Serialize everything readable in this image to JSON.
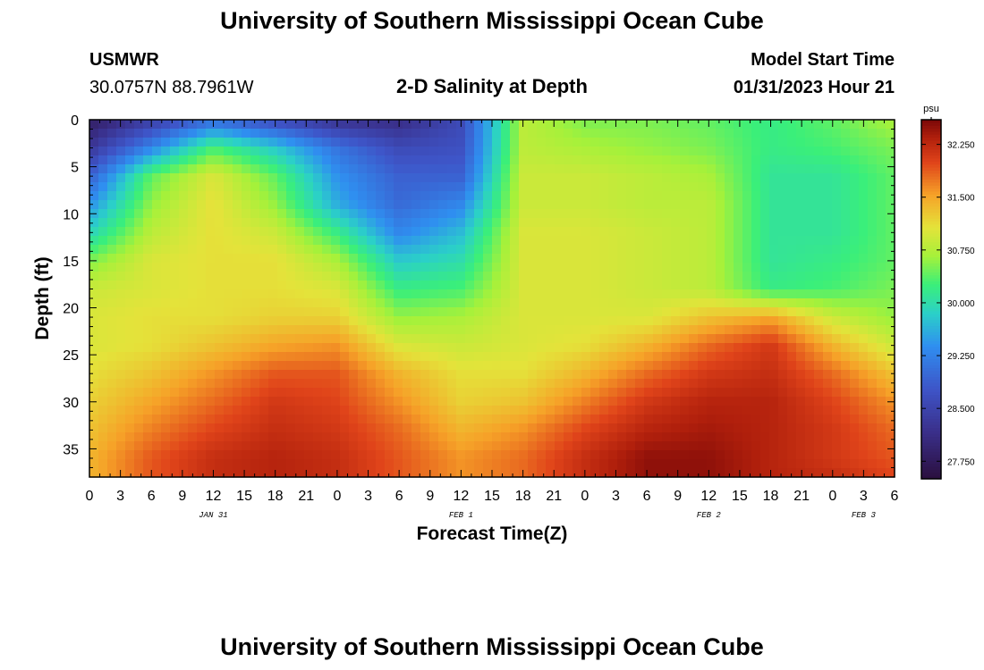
{
  "header": {
    "title": "University of Southern Mississippi Ocean Cube",
    "station_id": "USMWR",
    "coords": "30.0757N  88.7961W",
    "plot_title": "2-D Salinity at Depth",
    "start_label": "Model Start Time",
    "start_value": "01/31/2023 Hour 21"
  },
  "footer": {
    "title": "University of Southern Mississippi Ocean Cube"
  },
  "chart_data": {
    "type": "heatmap",
    "title": "2-D Salinity at Depth",
    "xlabel": "Forecast Time(Z)",
    "ylabel": "Depth (ft)",
    "x_tick_labels": [
      "0",
      "3",
      "6",
      "9",
      "12",
      "15",
      "18",
      "21",
      "0",
      "3",
      "6",
      "9",
      "12",
      "15",
      "18",
      "21",
      "0",
      "3",
      "6",
      "9",
      "12",
      "15",
      "18",
      "21",
      "0",
      "3",
      "6"
    ],
    "x_hours_offset": [
      0,
      3,
      6,
      9,
      12,
      15,
      18,
      21,
      24,
      27,
      30,
      33,
      36,
      39,
      42,
      45,
      48,
      51,
      54,
      57,
      60,
      63,
      66,
      69,
      72,
      75,
      78
    ],
    "x_range_hours": [
      0,
      78
    ],
    "date_labels": [
      {
        "text": "JAN 31",
        "hour": 12
      },
      {
        "text": "FEB 1",
        "hour": 36
      },
      {
        "text": "FEB 2",
        "hour": 60
      },
      {
        "text": "FEB 3",
        "hour": 75
      }
    ],
    "y_ticks": [
      0,
      5,
      10,
      15,
      20,
      25,
      30,
      35
    ],
    "y_tick_labels": [
      "0",
      "5",
      "10",
      "15",
      "20",
      "25",
      "30",
      "35"
    ],
    "ylim": [
      0,
      38
    ],
    "y_inverted": true,
    "colorbar": {
      "unit": "psu",
      "range": [
        27.5,
        32.6
      ],
      "ticks": [
        27.75,
        28.5,
        29.25,
        30.0,
        30.75,
        31.5,
        32.25
      ],
      "tick_labels": [
        "27.750",
        "28.500",
        "29.250",
        "30.000",
        "30.750",
        "31.500",
        "32.250"
      ]
    },
    "salinity_grid_psu": {
      "hours": [
        0,
        6,
        12,
        18,
        24,
        30,
        36,
        42,
        48,
        54,
        60,
        66,
        72,
        78
      ],
      "depths_ft": [
        0,
        3,
        6,
        9,
        12,
        15,
        18,
        21,
        24,
        27,
        30,
        33,
        36,
        38
      ],
      "rows": [
        [
          27.8,
          28.4,
          29.0,
          28.6,
          28.2,
          28.1,
          28.6,
          30.8,
          30.5,
          30.5,
          30.4,
          30.2,
          30.4,
          30.7
        ],
        [
          28.3,
          29.3,
          30.3,
          29.8,
          29.1,
          28.6,
          28.7,
          30.8,
          30.7,
          30.6,
          30.5,
          30.2,
          30.3,
          30.5
        ],
        [
          28.9,
          30.4,
          31.0,
          30.4,
          29.4,
          28.9,
          28.9,
          30.9,
          30.9,
          30.8,
          30.7,
          30.1,
          30.1,
          30.4
        ],
        [
          29.4,
          30.6,
          31.1,
          30.6,
          29.6,
          29.0,
          29.3,
          30.9,
          30.9,
          30.8,
          30.8,
          30.1,
          30.1,
          30.4
        ],
        [
          29.9,
          30.8,
          31.1,
          30.9,
          30.2,
          29.3,
          29.7,
          31.0,
          31.0,
          30.9,
          30.8,
          30.1,
          30.1,
          30.4
        ],
        [
          30.5,
          31.0,
          31.1,
          31.1,
          30.7,
          29.8,
          30.0,
          31.0,
          31.0,
          30.9,
          30.8,
          30.1,
          30.2,
          30.4
        ],
        [
          30.9,
          31.0,
          31.1,
          31.1,
          31.0,
          30.2,
          30.3,
          31.0,
          31.0,
          30.9,
          30.8,
          30.2,
          30.3,
          30.5
        ],
        [
          31.0,
          31.1,
          31.1,
          31.2,
          31.2,
          30.6,
          30.7,
          31.0,
          31.0,
          31.0,
          31.3,
          31.5,
          30.9,
          30.6
        ],
        [
          31.0,
          31.1,
          31.3,
          31.5,
          31.6,
          31.0,
          30.9,
          31.0,
          31.1,
          31.4,
          31.8,
          32.1,
          31.4,
          30.9
        ],
        [
          31.1,
          31.3,
          31.6,
          31.9,
          31.9,
          31.4,
          31.1,
          31.1,
          31.4,
          31.8,
          32.1,
          32.2,
          31.8,
          31.3
        ],
        [
          31.2,
          31.5,
          31.8,
          32.1,
          32.0,
          31.6,
          31.2,
          31.3,
          31.7,
          32.1,
          32.3,
          32.3,
          32.0,
          31.6
        ],
        [
          31.3,
          31.7,
          32.0,
          32.2,
          32.1,
          31.8,
          31.4,
          31.6,
          32.0,
          32.3,
          32.4,
          32.3,
          32.1,
          31.8
        ],
        [
          31.4,
          31.9,
          32.2,
          32.3,
          32.2,
          31.9,
          31.6,
          31.8,
          32.2,
          32.5,
          32.5,
          32.3,
          32.1,
          31.9
        ],
        [
          31.4,
          31.9,
          32.2,
          32.3,
          32.2,
          31.9,
          31.6,
          31.8,
          32.2,
          32.5,
          32.5,
          32.3,
          32.2,
          32.0
        ]
      ]
    }
  }
}
